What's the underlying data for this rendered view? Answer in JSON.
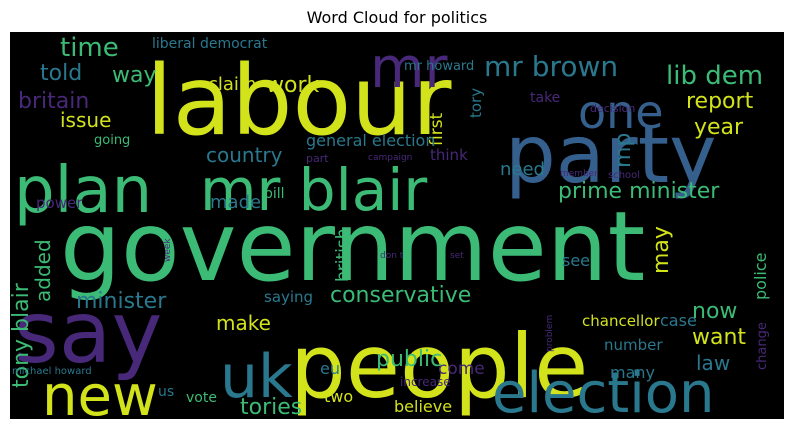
{
  "figure": {
    "title": "Word Cloud for politics"
  },
  "palette": {
    "background": "#000000",
    "yellow": "#d2e21b",
    "green": "#3bbb75",
    "teal": "#2a788e",
    "blue": "#35608d",
    "purple": "#482878"
  },
  "words": [
    {
      "id": "government",
      "text": "government",
      "color": "#3bbb75"
    },
    {
      "id": "labour",
      "text": "labour",
      "color": "#d2e21b"
    },
    {
      "id": "party",
      "text": "party",
      "color": "#35608d"
    },
    {
      "id": "people",
      "text": "people",
      "color": "#d2e21b"
    },
    {
      "id": "say",
      "text": "say",
      "color": "#482878"
    },
    {
      "id": "plan",
      "text": "plan",
      "color": "#3bbb75"
    },
    {
      "id": "mr-blair",
      "text": "mr blair",
      "color": "#3bbb75"
    },
    {
      "id": "election",
      "text": "election",
      "color": "#2a788e"
    },
    {
      "id": "new",
      "text": "new",
      "color": "#d2e21b"
    },
    {
      "id": "uk",
      "text": "uk",
      "color": "#2a788e"
    },
    {
      "id": "mr",
      "text": "mr",
      "color": "#482878"
    },
    {
      "id": "one",
      "text": "one",
      "color": "#35608d"
    },
    {
      "id": "mr-brown",
      "text": "mr brown",
      "color": "#2a788e"
    },
    {
      "id": "lib-dem",
      "text": "lib dem",
      "color": "#3bbb75"
    },
    {
      "id": "time",
      "text": "time",
      "color": "#3bbb75"
    },
    {
      "id": "liberal-democrat",
      "text": "liberal democrat",
      "color": "#2a788e"
    },
    {
      "id": "told",
      "text": "told",
      "color": "#2a788e"
    },
    {
      "id": "way",
      "text": "way",
      "color": "#3bbb75"
    },
    {
      "id": "britain",
      "text": "britain",
      "color": "#482878"
    },
    {
      "id": "claim",
      "text": "claim",
      "color": "#d2e21b"
    },
    {
      "id": "work",
      "text": "work",
      "color": "#d2e21b"
    },
    {
      "id": "issue",
      "text": "issue",
      "color": "#d2e21b"
    },
    {
      "id": "report",
      "text": "report",
      "color": "#d2e21b"
    },
    {
      "id": "year",
      "text": "year",
      "color": "#d2e21b"
    },
    {
      "id": "mr-howard",
      "text": "mr howard",
      "color": "#2a788e"
    },
    {
      "id": "tory",
      "text": "tory",
      "color": "#2a788e"
    },
    {
      "id": "first",
      "text": "first",
      "color": "#d2e21b"
    },
    {
      "id": "take",
      "text": "take",
      "color": "#482878"
    },
    {
      "id": "decision",
      "text": "decision",
      "color": "#482878"
    },
    {
      "id": "going",
      "text": "going",
      "color": "#3bbb75"
    },
    {
      "id": "country",
      "text": "country",
      "color": "#2a788e"
    },
    {
      "id": "general-election",
      "text": "general election",
      "color": "#2a788e"
    },
    {
      "id": "part",
      "text": "part",
      "color": "#482878"
    },
    {
      "id": "campaign",
      "text": "campaign",
      "color": "#482878"
    },
    {
      "id": "think",
      "text": "think",
      "color": "#482878"
    },
    {
      "id": "mp",
      "text": "mp",
      "color": "#2a788e"
    },
    {
      "id": "need",
      "text": "need",
      "color": "#2a788e"
    },
    {
      "id": "member",
      "text": "member",
      "color": "#482878"
    },
    {
      "id": "school",
      "text": "school",
      "color": "#482878"
    },
    {
      "id": "prime-minister",
      "text": "prime minister",
      "color": "#3bbb75"
    },
    {
      "id": "made",
      "text": "made",
      "color": "#2a788e"
    },
    {
      "id": "bill",
      "text": "bill",
      "color": "#3bbb75"
    },
    {
      "id": "power",
      "text": "power",
      "color": "#482878"
    },
    {
      "id": "week",
      "text": "week",
      "color": "#482878"
    },
    {
      "id": "dont",
      "text": "don t",
      "color": "#482878"
    },
    {
      "id": "set",
      "text": "set",
      "color": "#482878"
    },
    {
      "id": "added",
      "text": "added",
      "color": "#3bbb75"
    },
    {
      "id": "tony-blair",
      "text": "tony blair",
      "color": "#3bbb75"
    },
    {
      "id": "minister",
      "text": "minister",
      "color": "#2a788e"
    },
    {
      "id": "british",
      "text": "british",
      "color": "#3bbb75"
    },
    {
      "id": "saying",
      "text": "saying",
      "color": "#2a788e"
    },
    {
      "id": "conservative",
      "text": "conservative",
      "color": "#3bbb75"
    },
    {
      "id": "may",
      "text": "may",
      "color": "#d2e21b"
    },
    {
      "id": "see",
      "text": "see",
      "color": "#2a788e"
    },
    {
      "id": "now",
      "text": "now",
      "color": "#3bbb75"
    },
    {
      "id": "want",
      "text": "want",
      "color": "#d2e21b"
    },
    {
      "id": "law",
      "text": "law",
      "color": "#2a788e"
    },
    {
      "id": "change",
      "text": "change",
      "color": "#482878"
    },
    {
      "id": "police",
      "text": "police",
      "color": "#3bbb75"
    },
    {
      "id": "make",
      "text": "make",
      "color": "#d2e21b"
    },
    {
      "id": "chancellor",
      "text": "chancellor",
      "color": "#d2e21b"
    },
    {
      "id": "case",
      "text": "case",
      "color": "#2a788e"
    },
    {
      "id": "number",
      "text": "number",
      "color": "#2a788e"
    },
    {
      "id": "problem",
      "text": "problem",
      "color": "#482878"
    },
    {
      "id": "public",
      "text": "public",
      "color": "#3bbb75"
    },
    {
      "id": "come",
      "text": "come",
      "color": "#482878"
    },
    {
      "id": "many",
      "text": "many",
      "color": "#2a788e"
    },
    {
      "id": "eu",
      "text": "eu",
      "color": "#2a788e"
    },
    {
      "id": "increase",
      "text": "increase",
      "color": "#482878"
    },
    {
      "id": "michael-howard",
      "text": "michael howard",
      "color": "#2a788e"
    },
    {
      "id": "us",
      "text": "us",
      "color": "#2a788e"
    },
    {
      "id": "vote",
      "text": "vote",
      "color": "#3bbb75"
    },
    {
      "id": "tories",
      "text": "tories",
      "color": "#3bbb75"
    },
    {
      "id": "two",
      "text": "two",
      "color": "#d2e21b"
    },
    {
      "id": "believe",
      "text": "believe",
      "color": "#d2e21b"
    }
  ]
}
